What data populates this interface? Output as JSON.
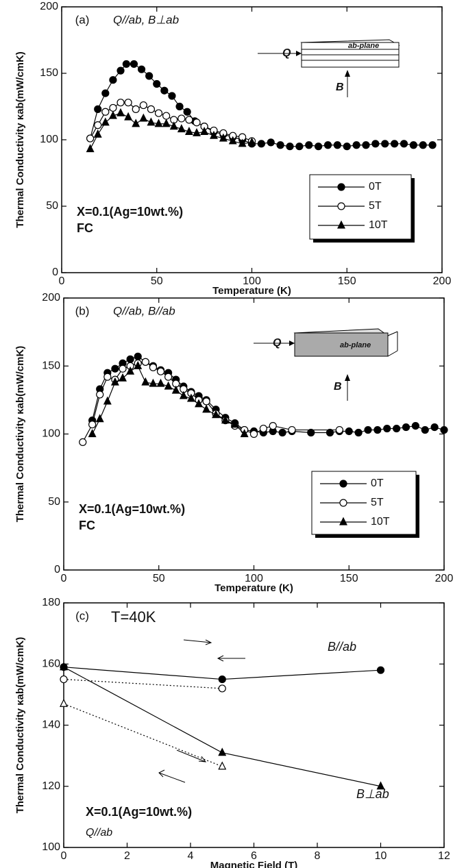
{
  "chart_data": [
    {
      "type": "scatter",
      "title": "(a)",
      "subtitle": "Q//ab, B⊥ab",
      "xlabel": "Temperature (K)",
      "ylabel": "Thermal Conductivity κab(mW/cmK)",
      "xlim": [
        0,
        200
      ],
      "xticks": [
        0,
        50,
        100,
        150,
        200
      ],
      "ylim": [
        0,
        200
      ],
      "yticks": [
        0,
        50,
        100,
        150,
        200
      ],
      "legend": "right",
      "annotations": [
        "X=0.1(Ag=10wt.%)",
        "FC"
      ],
      "inset": [
        "Q",
        "B",
        "ab-plane"
      ],
      "series": [
        {
          "name": "0T",
          "color": "#000000",
          "marker": "circle",
          "line": "solid",
          "x": [
            15,
            19,
            23,
            27,
            31,
            34,
            38,
            42,
            46,
            50,
            54,
            58,
            62,
            66,
            70,
            75,
            80,
            85,
            90,
            95,
            100,
            105,
            110,
            115,
            120,
            125,
            130,
            135,
            140,
            145,
            150,
            155,
            160,
            165,
            170,
            175,
            180,
            185,
            190,
            195
          ],
          "values": [
            101,
            123,
            135,
            145,
            152,
            157,
            157,
            153,
            148,
            142,
            137,
            133,
            125,
            121,
            114,
            110,
            106,
            104,
            102,
            100,
            97,
            97,
            98,
            96,
            95,
            95,
            96,
            95,
            96,
            96,
            95,
            96,
            96,
            97,
            97,
            97,
            97,
            96,
            96,
            96
          ]
        },
        {
          "name": "5T",
          "color": "#000000",
          "marker": "open-circle",
          "line": "solid",
          "x": [
            15,
            19,
            23,
            27,
            31,
            35,
            39,
            43,
            47,
            51,
            55,
            59,
            63,
            67,
            71,
            75,
            80,
            85,
            90,
            95,
            100
          ],
          "values": [
            101,
            111,
            121,
            124,
            128,
            128,
            123,
            126,
            123,
            120,
            118,
            115,
            116,
            115,
            113,
            110,
            107,
            105,
            103,
            102,
            99
          ]
        },
        {
          "name": "10T",
          "color": "#000000",
          "marker": "triangle",
          "line": "solid",
          "x": [
            15,
            19,
            23,
            27,
            31,
            35,
            39,
            43,
            47,
            51,
            55,
            59,
            63,
            67,
            71,
            75,
            80,
            85,
            90,
            95,
            100
          ],
          "values": [
            93,
            104,
            113,
            118,
            120,
            117,
            112,
            116,
            113,
            112,
            112,
            110,
            108,
            106,
            105,
            106,
            103,
            101,
            99,
            97,
            98
          ]
        }
      ]
    },
    {
      "type": "scatter",
      "title": "(b)",
      "subtitle": "Q//ab, B//ab",
      "xlabel": "Temperature (K)",
      "ylabel": "Thermal Conductivity κab(mW/cmK)",
      "xlim": [
        0,
        200
      ],
      "xticks": [
        0,
        50,
        100,
        150,
        200
      ],
      "ylim": [
        0,
        200
      ],
      "yticks": [
        0,
        50,
        100,
        150,
        200
      ],
      "legend": "right",
      "annotations": [
        "X=0.1(Ag=10wt.%)",
        "FC"
      ],
      "inset": [
        "Q",
        "B",
        "ab-plane"
      ],
      "series": [
        {
          "name": "0T",
          "color": "#000000",
          "marker": "circle",
          "line": "solid",
          "x": [
            15,
            19,
            23,
            27,
            31,
            35,
            39,
            43,
            47,
            51,
            55,
            59,
            63,
            67,
            71,
            75,
            80,
            85,
            90,
            95,
            100,
            105,
            110,
            115,
            120,
            130,
            140,
            145,
            150,
            155,
            160,
            165,
            170,
            175,
            180,
            185,
            190,
            195,
            200
          ],
          "values": [
            110,
            133,
            145,
            148,
            152,
            155,
            157,
            153,
            150,
            147,
            145,
            140,
            135,
            131,
            128,
            125,
            118,
            112,
            108,
            103,
            102,
            101,
            102,
            101,
            102,
            101,
            101,
            102,
            102,
            101,
            103,
            103,
            104,
            104,
            105,
            106,
            103,
            105,
            103
          ]
        },
        {
          "name": "5T",
          "color": "#000000",
          "marker": "open-circle",
          "line": "solid",
          "x": [
            10,
            15,
            19,
            23,
            27,
            31,
            35,
            39,
            43,
            47,
            51,
            55,
            59,
            63,
            67,
            71,
            75,
            80,
            85,
            90,
            95,
            100,
            105,
            110,
            120,
            145
          ],
          "values": [
            94,
            107,
            129,
            142,
            140,
            148,
            150,
            152,
            153,
            149,
            146,
            142,
            137,
            133,
            130,
            125,
            124,
            115,
            110,
            106,
            103,
            100,
            104,
            106,
            103,
            103
          ]
        },
        {
          "name": "10T",
          "color": "#000000",
          "marker": "triangle",
          "line": "solid",
          "x": [
            15,
            19,
            23,
            27,
            31,
            35,
            39,
            43,
            47,
            51,
            55,
            59,
            63,
            67,
            71,
            75,
            80,
            85,
            90,
            95
          ],
          "values": [
            100,
            111,
            124,
            138,
            141,
            146,
            150,
            138,
            137,
            137,
            135,
            132,
            128,
            126,
            122,
            118,
            114,
            110,
            107,
            100
          ]
        }
      ]
    },
    {
      "type": "scatter",
      "title": "(c)",
      "subtitle": "T=40K",
      "xlabel": "Magnetic Field (T)",
      "ylabel": "Thermal Conductivity κab(mW/cmK)",
      "xlim": [
        0,
        12
      ],
      "xticks": [
        0,
        2,
        4,
        6,
        8,
        10,
        12
      ],
      "ylim": [
        100,
        180
      ],
      "yticks": [
        100,
        120,
        140,
        160,
        180
      ],
      "annotations": [
        "B//ab",
        "B⊥ab",
        "X=0.1(Ag=10wt.%)",
        "Q//ab"
      ],
      "series": [
        {
          "color": "#000000",
          "marker": "circle",
          "line": "solid",
          "x": [
            0,
            5,
            10
          ],
          "values": [
            159,
            155,
            158
          ]
        },
        {
          "color": "#000000",
          "marker": "open-circle",
          "line": "dotted",
          "x": [
            0,
            5
          ],
          "values": [
            155,
            152
          ]
        },
        {
          "color": "#000000",
          "marker": "triangle",
          "line": "solid",
          "x": [
            0,
            5,
            10
          ],
          "values": [
            159,
            131,
            120
          ]
        },
        {
          "color": "#000000",
          "marker": "open-triangle",
          "line": "dotted",
          "x": [
            0,
            5
          ],
          "values": [
            147,
            126.5
          ]
        }
      ]
    }
  ]
}
